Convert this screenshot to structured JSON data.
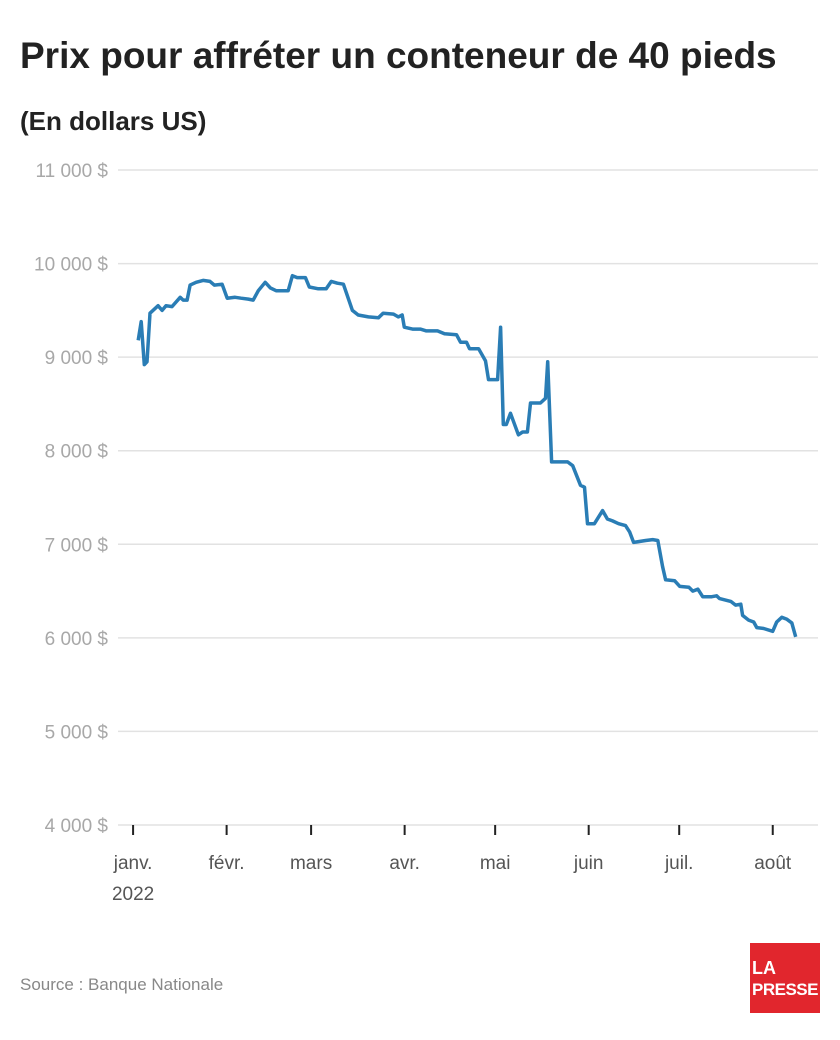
{
  "chart_data": {
    "type": "line",
    "title": "Prix pour affréter un conteneur de 40 pieds",
    "subtitle": "(En dollars US)",
    "x": [
      1.7,
      2.7,
      3.7,
      4.6,
      5.6,
      8.3,
      9.6,
      10.9,
      12.9,
      15.6,
      16.6,
      17.9,
      18.9,
      20.9,
      23.2,
      25.5,
      26.9,
      29.5,
      31.2,
      33.8,
      35.8,
      38.2,
      39.8,
      41.5,
      43.8,
      45.5,
      47.4,
      51.4,
      52.8,
      54.4,
      57.1,
      58.4,
      61.4,
      64,
      65.7,
      67.7,
      69.7,
      72.7,
      74.6,
      78,
      81.3,
      82.9,
      86.3,
      87.9,
      89.2,
      89.9,
      92.6,
      95.2,
      97.2,
      100.9,
      103.2,
      107.2,
      108.5,
      110.5,
      111.5,
      114.5,
      116.8,
      117.8,
      120.8,
      121.8,
      122.7,
      123.7,
      125.1,
      127.7,
      129.1,
      130.7,
      131.7,
      135,
      136.7,
      137.4,
      138.7,
      144,
      145.7,
      148.3,
      149.6,
      150.6,
      152.9,
      155.6,
      157.2,
      158.9,
      160.9,
      163.2,
      164.6,
      165.9,
      169.9,
      172.2,
      173.9,
      175.5,
      176.5,
      179.5,
      181.2,
      184.2,
      185.5,
      187.2,
      188.8,
      191.8,
      193.4,
      194.4,
      198.1,
      199.7,
      201.4,
      202,
      204,
      205.7,
      206.7,
      209,
      212,
      213.3,
      215,
      216.6,
      218.3,
      219.6
    ],
    "series": [
      {
        "color": "#2a7db5",
        "values": [
          9180,
          9380,
          8920,
          8950,
          9470,
          9550,
          9500,
          9550,
          9540,
          9640,
          9610,
          9610,
          9770,
          9800,
          9820,
          9810,
          9770,
          9780,
          9630,
          9640,
          9630,
          9620,
          9610,
          9710,
          9800,
          9740,
          9710,
          9710,
          9870,
          9850,
          9850,
          9750,
          9730,
          9730,
          9810,
          9790,
          9780,
          9500,
          9450,
          9430,
          9420,
          9470,
          9460,
          9430,
          9450,
          9320,
          9300,
          9300,
          9280,
          9280,
          9250,
          9240,
          9160,
          9160,
          9090,
          9090,
          8960,
          8760,
          8760,
          9320,
          8280,
          8280,
          8400,
          8170,
          8200,
          8200,
          8510,
          8510,
          8560,
          8950,
          7880,
          7880,
          7840,
          7630,
          7610,
          7220,
          7220,
          7360,
          7270,
          7250,
          7220,
          7200,
          7130,
          7020,
          7040,
          7050,
          7040,
          6760,
          6620,
          6610,
          6550,
          6540,
          6500,
          6520,
          6440,
          6440,
          6450,
          6420,
          6390,
          6350,
          6360,
          6240,
          6190,
          6170,
          6110,
          6100,
          6070,
          6170,
          6220,
          6200,
          6160,
          6010
        ]
      }
    ],
    "xlim": [
      -5,
      227
    ],
    "xticks": [
      {
        "value": 0,
        "label": "janv."
      },
      {
        "value": 31,
        "label": "févr."
      },
      {
        "value": 59,
        "label": "mars"
      },
      {
        "value": 90,
        "label": "avr."
      },
      {
        "value": 120,
        "label": "mai"
      },
      {
        "value": 151,
        "label": "juin"
      },
      {
        "value": 181,
        "label": "juil."
      },
      {
        "value": 212,
        "label": "août"
      }
    ],
    "x_year": "2022",
    "ylim": [
      4000,
      11000
    ],
    "yticks": [
      {
        "value": 4000,
        "label": "4 000 $"
      },
      {
        "value": 5000,
        "label": "5 000 $"
      },
      {
        "value": 6000,
        "label": "6 000 $"
      },
      {
        "value": 7000,
        "label": "7 000 $"
      },
      {
        "value": 8000,
        "label": "8 000 $"
      },
      {
        "value": 9000,
        "label": "9 000 $"
      },
      {
        "value": 10000,
        "label": "10 000 $"
      },
      {
        "value": 11000,
        "label": "11 000 $"
      }
    ],
    "grid": true
  },
  "source": "Source : Banque Nationale",
  "logo": {
    "line1": "LA",
    "line2": "PRESSE"
  }
}
